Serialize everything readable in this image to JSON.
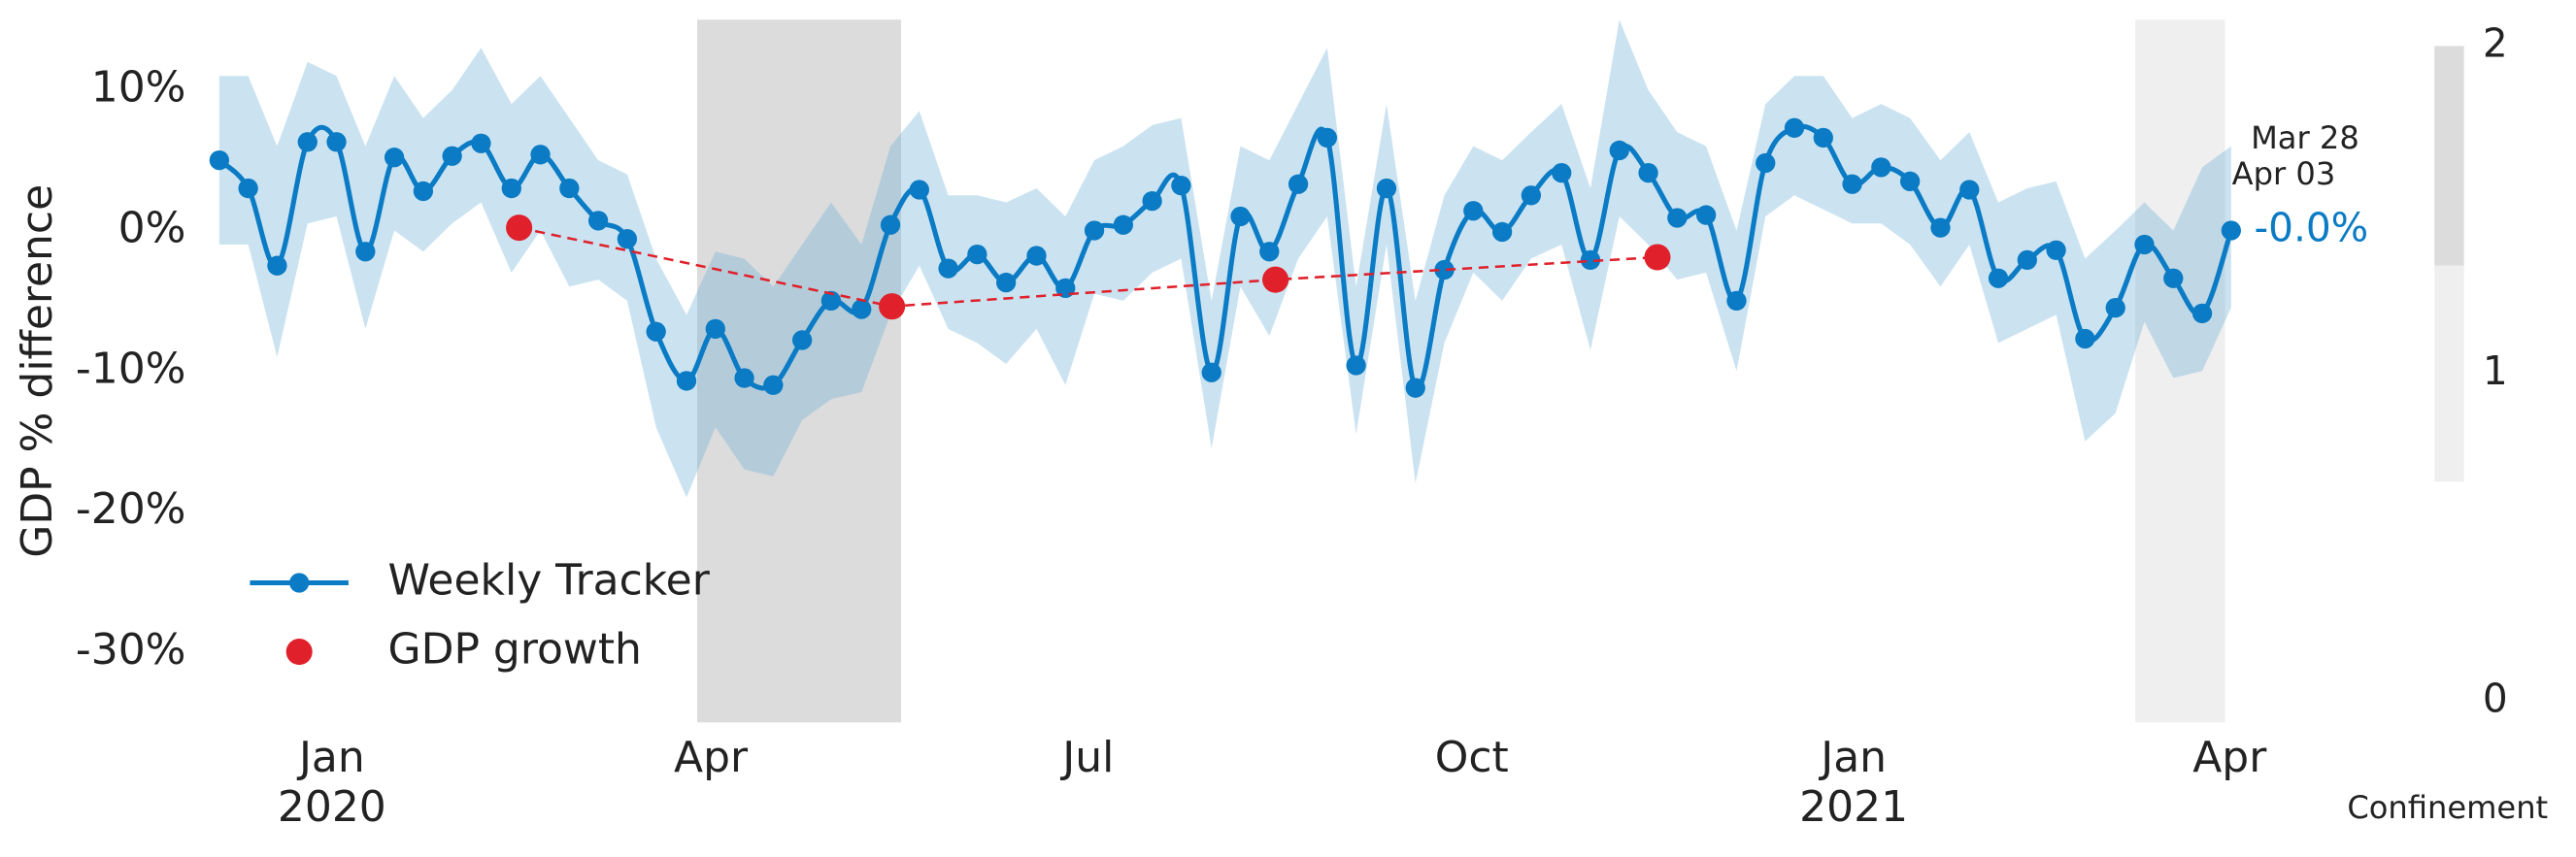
{
  "chart_data": {
    "type": "line",
    "ylabel": "GDP % difference",
    "xlim": [
      2019.917,
      2021.251
    ],
    "ylim": [
      -35,
      15
    ],
    "xticks": [
      {
        "value": 2020.0,
        "label": "Jan"
      },
      {
        "value": 2020.249,
        "label": "Apr"
      },
      {
        "value": 2020.497,
        "label": "Jul"
      },
      {
        "value": 2020.749,
        "label": "Oct"
      },
      {
        "value": 2021.0,
        "label": "Jan"
      },
      {
        "value": 2021.247,
        "label": "Apr"
      }
    ],
    "year_labels": [
      {
        "value": 2020.0,
        "label": "2020"
      },
      {
        "value": 2021.0,
        "label": "2021"
      }
    ],
    "yticks": [
      {
        "value": -30,
        "label": "-30%"
      },
      {
        "value": -20,
        "label": "-20%"
      },
      {
        "value": -10,
        "label": "-10%"
      },
      {
        "value": 0,
        "label": "0%"
      },
      {
        "value": 10,
        "label": "10%"
      }
    ],
    "grid": false,
    "legend": "lower left",
    "series": [
      {
        "name": "Weekly Tracker",
        "color": "#0a7bc4",
        "band_color": "#6baed6",
        "x": [
          2019.926,
          2019.945,
          2019.964,
          2019.984,
          2020.003,
          2020.022,
          2020.041,
          2020.06,
          2020.079,
          2020.098,
          2020.118,
          2020.137,
          2020.156,
          2020.175,
          2020.194,
          2020.213,
          2020.233,
          2020.252,
          2020.271,
          2020.29,
          2020.309,
          2020.328,
          2020.348,
          2020.367,
          2020.386,
          2020.405,
          2020.424,
          2020.443,
          2020.463,
          2020.482,
          2020.501,
          2020.52,
          2020.539,
          2020.558,
          2020.578,
          2020.597,
          2020.616,
          2020.635,
          2020.654,
          2020.673,
          2020.693,
          2020.712,
          2020.731,
          2020.75,
          2020.769,
          2020.788,
          2020.808,
          2020.827,
          2020.846,
          2020.865,
          2020.884,
          2020.903,
          2020.923,
          2020.942,
          2020.961,
          2020.98,
          2020.999,
          2021.018,
          2021.037,
          2021.057,
          2021.076,
          2021.095,
          2021.114,
          2021.133,
          2021.152,
          2021.172,
          2021.191,
          2021.21,
          2021.229,
          2021.248
        ],
        "values": [
          5.0,
          3.0,
          -2.5,
          6.3,
          6.3,
          -1.5,
          5.2,
          2.8,
          5.3,
          6.2,
          3.0,
          5.4,
          3.0,
          0.7,
          -0.6,
          -7.2,
          -10.7,
          -7.0,
          -10.5,
          -11.0,
          -7.8,
          -5.0,
          -5.6,
          0.4,
          2.9,
          -2.7,
          -1.7,
          -3.7,
          -1.8,
          -4.1,
          0.0,
          0.4,
          2.1,
          3.2,
          -10.1,
          1.0,
          -1.5,
          3.3,
          6.6,
          -9.6,
          3.0,
          -11.2,
          -2.8,
          1.4,
          -0.1,
          2.5,
          4.1,
          -2.1,
          5.7,
          4.1,
          0.9,
          1.1,
          -5.0,
          4.8,
          7.3,
          6.6,
          3.3,
          4.5,
          3.5,
          0.2,
          2.9,
          -3.4,
          -2.1,
          -1.4,
          -7.7,
          -5.5,
          -1.0,
          -3.4,
          -5.9,
          0.0
        ],
        "upper": [
          11,
          11,
          6,
          12,
          11,
          6,
          11,
          8,
          10,
          13,
          9,
          11,
          8,
          5,
          4,
          -2,
          -6,
          -1.5,
          -2,
          -4,
          -1,
          2,
          -1,
          6,
          8.5,
          2.5,
          2.5,
          2,
          3,
          1,
          5,
          6,
          7.5,
          8,
          -5,
          6,
          5,
          9,
          13,
          -4,
          9,
          -5,
          2.5,
          6,
          5,
          7,
          9,
          3,
          15,
          10,
          7,
          6,
          0,
          9,
          11,
          11,
          8,
          9,
          8,
          5,
          7,
          2,
          3,
          3.5,
          -2,
          0,
          2,
          0,
          4.5,
          6
        ],
        "lower": [
          -1,
          -1,
          -9,
          0.5,
          1,
          -7,
          0,
          -1.5,
          0.5,
          2,
          -3,
          0,
          -4,
          -3.5,
          -5,
          -14,
          -19,
          -14,
          -17,
          -17.5,
          -13.5,
          -12,
          -11.5,
          -6,
          -2.5,
          -7,
          -8,
          -9.5,
          -7,
          -11,
          -4.5,
          -5,
          -3,
          -2,
          -15.5,
          -4,
          -7.5,
          -2,
          1,
          -14.5,
          -1,
          -18,
          -8,
          -3,
          -5,
          -2,
          -1,
          -8.5,
          1,
          -1,
          -3.5,
          -3,
          -10,
          1,
          2.5,
          1.5,
          0.5,
          0.5,
          -1,
          -4,
          -1,
          -8,
          -7,
          -6,
          -15,
          -13,
          -6.5,
          -10.5,
          -10,
          -5.5
        ]
      },
      {
        "name": "GDP growth",
        "color": "#e0202a",
        "x": [
          2020.123,
          2020.368,
          2020.62,
          2020.871
        ],
        "values": [
          0.2,
          -5.4,
          -3.5,
          -1.9
        ]
      }
    ],
    "annotation": {
      "lines": [
        "Mar 28",
        "Apr 03"
      ],
      "value_label": "-0.0%"
    },
    "shaded_regions": [
      {
        "from": 2020.24,
        "to": 2020.374,
        "level": 2
      },
      {
        "from": 2021.185,
        "to": 2021.244,
        "level": 1
      }
    ],
    "colorbar": {
      "label": "Confinement",
      "lim": [
        0,
        2
      ],
      "ticks": [
        0,
        1,
        2
      ],
      "segments": [
        {
          "from": 0.67,
          "to": 1.33,
          "color": "#efefef"
        },
        {
          "from": 1.33,
          "to": 2,
          "color": "#dcdcdc"
        }
      ]
    }
  }
}
